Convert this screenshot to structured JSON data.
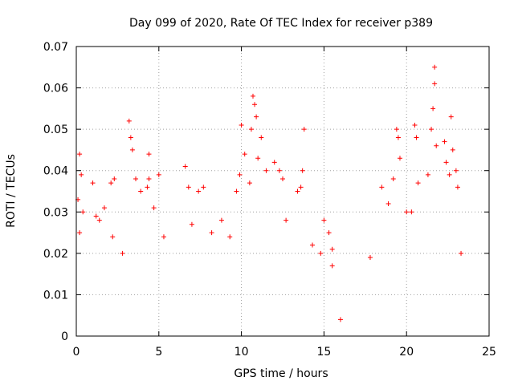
{
  "chart_data": {
    "type": "scatter",
    "title": "Day 099 of 2020, Rate Of TEC Index for receiver p389",
    "xlabel": "GPS time / hours",
    "ylabel": "ROTI / TECUs",
    "xlim": [
      0,
      25
    ],
    "ylim": [
      0,
      0.07
    ],
    "x_ticks": [
      "0",
      "5",
      "10",
      "15",
      "20",
      "25"
    ],
    "y_ticks": [
      "0",
      "0.01",
      "0.02",
      "0.03",
      "0.04",
      "0.05",
      "0.06",
      "0.07"
    ],
    "grid": true,
    "marker": "+",
    "color": "#ff0000",
    "series": [
      {
        "points": [
          [
            0.2,
            0.044
          ],
          [
            0.3,
            0.039
          ],
          [
            0.1,
            0.033
          ],
          [
            0.4,
            0.03
          ],
          [
            0.2,
            0.025
          ],
          [
            1.0,
            0.037
          ],
          [
            1.2,
            0.029
          ],
          [
            1.4,
            0.028
          ],
          [
            1.7,
            0.031
          ],
          [
            2.1,
            0.037
          ],
          [
            2.2,
            0.024
          ],
          [
            2.3,
            0.038
          ],
          [
            2.8,
            0.02
          ],
          [
            3.2,
            0.052
          ],
          [
            3.3,
            0.048
          ],
          [
            3.4,
            0.045
          ],
          [
            3.6,
            0.038
          ],
          [
            3.9,
            0.035
          ],
          [
            4.3,
            0.036
          ],
          [
            4.4,
            0.038
          ],
          [
            4.4,
            0.044
          ],
          [
            4.7,
            0.031
          ],
          [
            5.0,
            0.039
          ],
          [
            5.3,
            0.024
          ],
          [
            6.6,
            0.041
          ],
          [
            6.8,
            0.036
          ],
          [
            7.0,
            0.027
          ],
          [
            7.4,
            0.035
          ],
          [
            7.7,
            0.036
          ],
          [
            8.2,
            0.025
          ],
          [
            8.8,
            0.028
          ],
          [
            9.3,
            0.024
          ],
          [
            9.7,
            0.035
          ],
          [
            9.9,
            0.039
          ],
          [
            10.0,
            0.051
          ],
          [
            10.2,
            0.044
          ],
          [
            10.5,
            0.037
          ],
          [
            10.7,
            0.058
          ],
          [
            10.8,
            0.056
          ],
          [
            10.9,
            0.053
          ],
          [
            10.6,
            0.05
          ],
          [
            11.2,
            0.048
          ],
          [
            11.0,
            0.043
          ],
          [
            11.5,
            0.04
          ],
          [
            12.0,
            0.042
          ],
          [
            12.3,
            0.04
          ],
          [
            12.5,
            0.038
          ],
          [
            12.7,
            0.028
          ],
          [
            13.8,
            0.05
          ],
          [
            13.7,
            0.04
          ],
          [
            13.6,
            0.036
          ],
          [
            14.3,
            0.022
          ],
          [
            15.0,
            0.028
          ],
          [
            15.3,
            0.025
          ],
          [
            15.5,
            0.021
          ],
          [
            15.5,
            0.017
          ],
          [
            16.0,
            0.004
          ],
          [
            17.8,
            0.019
          ],
          [
            18.5,
            0.036
          ],
          [
            18.9,
            0.032
          ],
          [
            19.2,
            0.038
          ],
          [
            19.4,
            0.05
          ],
          [
            19.5,
            0.048
          ],
          [
            19.6,
            0.043
          ],
          [
            20.0,
            0.03
          ],
          [
            20.3,
            0.03
          ],
          [
            20.5,
            0.051
          ],
          [
            20.6,
            0.048
          ],
          [
            20.7,
            0.037
          ],
          [
            21.3,
            0.039
          ],
          [
            21.5,
            0.05
          ],
          [
            21.6,
            0.055
          ],
          [
            21.7,
            0.061
          ],
          [
            21.7,
            0.065
          ],
          [
            21.8,
            0.046
          ],
          [
            22.3,
            0.047
          ],
          [
            22.4,
            0.042
          ],
          [
            22.6,
            0.039
          ],
          [
            22.7,
            0.053
          ],
          [
            22.8,
            0.045
          ],
          [
            23.0,
            0.04
          ],
          [
            23.1,
            0.036
          ],
          [
            23.3,
            0.02
          ],
          [
            13.4,
            0.035
          ],
          [
            14.8,
            0.02
          ]
        ]
      }
    ]
  }
}
